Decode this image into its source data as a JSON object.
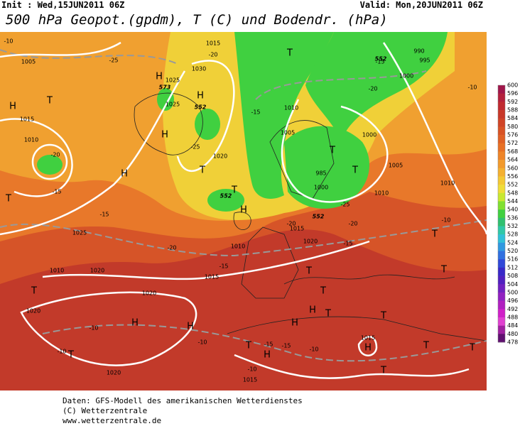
{
  "header": {
    "init": "Init : Wed,15JUN2011 06Z",
    "valid": "Valid: Mon,20JUN2011 06Z",
    "title": "500 hPa Geopot.(gpdm), T (C) und Bodendr. (hPa)"
  },
  "colorbar": {
    "labels": [
      "600",
      "596",
      "592",
      "588",
      "584",
      "580",
      "576",
      "572",
      "568",
      "564",
      "560",
      "556",
      "552",
      "548",
      "544",
      "540",
      "536",
      "532",
      "528",
      "524",
      "520",
      "516",
      "512",
      "508",
      "504",
      "500",
      "496",
      "492",
      "488",
      "484",
      "480",
      "478"
    ],
    "colors": [
      "#a0164a",
      "#b4203c",
      "#c02a30",
      "#c83828",
      "#d04426",
      "#d85224",
      "#e06024",
      "#e87024",
      "#ee8428",
      "#f29a2c",
      "#f4b030",
      "#f4c834",
      "#f0dc38",
      "#c8e830",
      "#80e030",
      "#40d040",
      "#30c070",
      "#30c8a8",
      "#30c0d8",
      "#3098e0",
      "#3070e0",
      "#3048d8",
      "#3828c8",
      "#5020c0",
      "#7020c0",
      "#9020c0",
      "#b020c0",
      "#d020c8",
      "#e040d0",
      "#a020a0",
      "#601070"
    ]
  },
  "map": {
    "pressure_centers": [
      "H",
      "H",
      "H",
      "H",
      "H",
      "H",
      "H",
      "H",
      "H",
      "H",
      "H",
      "H",
      "T",
      "T",
      "T",
      "T",
      "T",
      "T",
      "T",
      "T",
      "T",
      "T",
      "T",
      "T",
      "T",
      "T",
      "T",
      "T",
      "T",
      "T",
      "T"
    ],
    "isobar_labels": [
      "1005",
      "1015",
      "1010",
      "1025",
      "1020",
      "1010",
      "1020",
      "1020",
      "1020",
      "1015",
      "1015",
      "1015",
      "1010",
      "1005",
      "1000",
      "1000",
      "995",
      "990",
      "1030",
      "1025",
      "1025",
      "1020",
      "1015",
      "1010",
      "1005",
      "1000",
      "985",
      "1010",
      "1020",
      "1015",
      "1010"
    ],
    "temperature_labels": [
      "-10",
      "-25",
      "-15",
      "-20",
      "-15",
      "-20",
      "-25",
      "-15",
      "-20",
      "-15",
      "-25",
      "-20",
      "-15",
      "-15",
      "-10",
      "-10",
      "-10",
      "-10",
      "-10",
      "-10",
      "-15",
      "-15",
      "-10",
      "-20",
      "-20"
    ],
    "height_labels": [
      "552",
      "552",
      "552",
      "552",
      "573"
    ]
  },
  "footer": {
    "lines": [
      "Daten: GFS-Modell des amerikanischen Wetterdienstes",
      "(C) Wetterzentrale",
      "www.wetterzentrale.de"
    ]
  }
}
